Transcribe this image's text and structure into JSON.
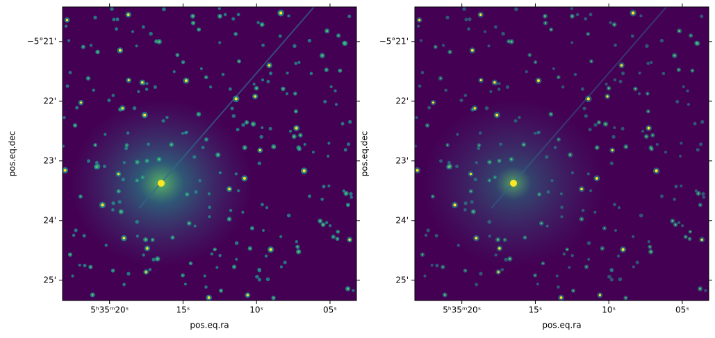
{
  "chart_data": [
    {
      "type": "image",
      "xlabel": "pos.eq.ra",
      "ylabel": "pos.eq.dec",
      "xlim": [
        23.2,
        3.2
      ],
      "ylim": [
        25.34,
        20.42
      ],
      "xticks": [
        {
          "value": 20,
          "label": "5ʰ35ᵐ20ˢ"
        },
        {
          "value": 15,
          "label": "15ˢ"
        },
        {
          "value": 10,
          "label": "10ˢ"
        },
        {
          "value": 5,
          "label": "05ˢ"
        }
      ],
      "yticks": [
        {
          "value": 21,
          "label": "−5°21'"
        },
        {
          "value": 22,
          "label": "22'"
        },
        {
          "value": 23,
          "label": "23'"
        },
        {
          "value": 24,
          "label": "24'"
        },
        {
          "value": 25,
          "label": "25'"
        }
      ]
    },
    {
      "type": "image",
      "xlabel": "pos.eq.ra",
      "ylabel": "pos.eq.dec",
      "xlim": [
        23.2,
        3.2
      ],
      "ylim": [
        25.34,
        20.42
      ],
      "xticks": [
        {
          "value": 20,
          "label": "5ʰ35ᵐ20ˢ"
        },
        {
          "value": 15,
          "label": "15ˢ"
        },
        {
          "value": 10,
          "label": "10ˢ"
        },
        {
          "value": 5,
          "label": "05ˢ"
        }
      ],
      "yticks": [
        {
          "value": 21,
          "label": "−5°21'"
        },
        {
          "value": 22,
          "label": "22'"
        },
        {
          "value": 23,
          "label": "23'"
        },
        {
          "value": 24,
          "label": "24'"
        },
        {
          "value": 25,
          "label": "25'"
        }
      ]
    }
  ]
}
